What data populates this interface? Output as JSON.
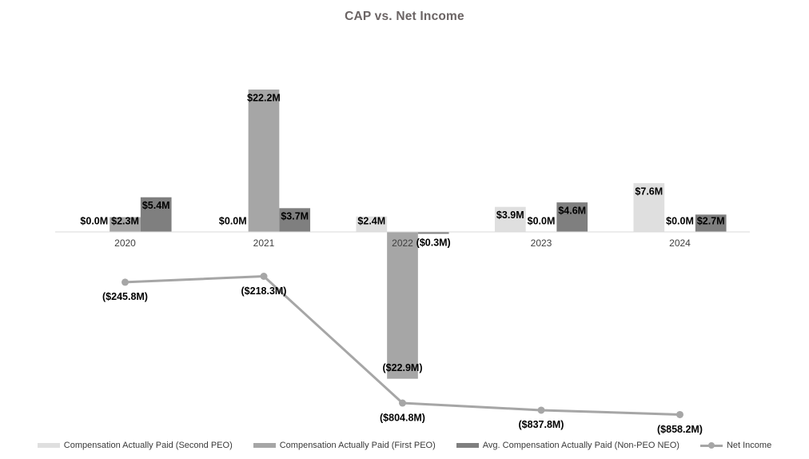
{
  "title": "CAP vs. Net Income",
  "chart_data": {
    "type": "bar",
    "subtype": "combo-bar-line",
    "title": "CAP vs. Net Income",
    "xlabel": "",
    "ylabel": "",
    "units": "millions USD",
    "gridlines": false,
    "legend_position": "bottom",
    "categories": [
      "2020",
      "2021",
      "2022",
      "2023",
      "2024"
    ],
    "bar_series": [
      {
        "name": "Compensation Actually Paid (Second PEO)",
        "color": "#dfdfdf",
        "values": [
          0.0,
          0.0,
          2.4,
          3.9,
          7.6
        ],
        "labels": [
          "$0.0M",
          "$0.0M",
          "$2.4M",
          "$3.9M",
          "$7.6M"
        ]
      },
      {
        "name": "Compensation Actually Paid (First PEO)",
        "color": "#a6a6a6",
        "values": [
          2.3,
          22.2,
          -22.9,
          0.0,
          0.0
        ],
        "labels": [
          "$2.3M",
          "$22.2M",
          "($22.9M)",
          "$0.0M",
          "$0.0M"
        ]
      },
      {
        "name": "Avg. Compensation Actually Paid (Non-PEO NEO)",
        "color": "#7f7f7f",
        "values": [
          5.4,
          3.7,
          -0.3,
          4.6,
          2.7
        ],
        "labels": [
          "$5.4M",
          "$3.7M",
          "($0.3M)",
          "$4.6M",
          "$2.7M"
        ]
      }
    ],
    "line_series": {
      "name": "Net Income",
      "color": "#a6a6a6",
      "values": [
        -245.8,
        -218.3,
        -804.8,
        -837.8,
        -858.2
      ],
      "labels": [
        "($245.8M)",
        "($218.3M)",
        "($804.8M)",
        "($837.8M)",
        "($858.2M)"
      ]
    },
    "colors": {
      "axis_line": "#d9d9d9",
      "year_label": "#404040",
      "data_label": "#000000",
      "title": "#6b6464"
    }
  }
}
